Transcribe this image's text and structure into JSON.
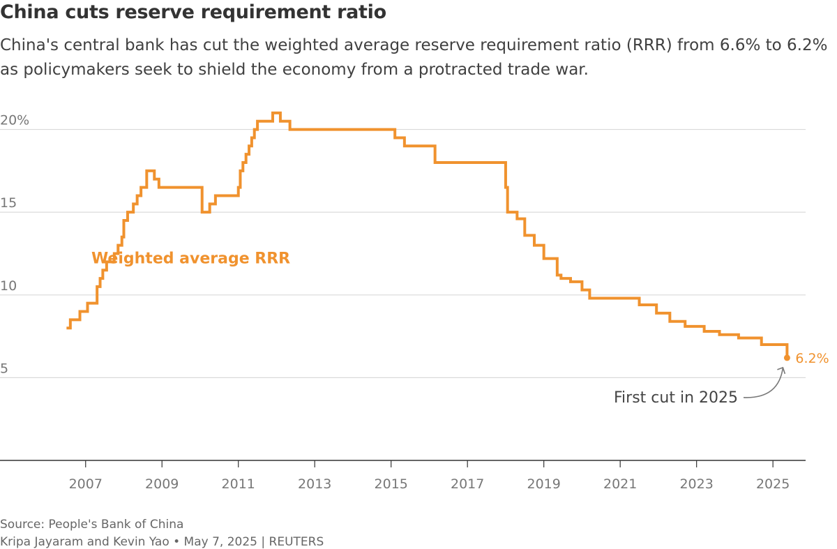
{
  "header": {
    "title": "China cuts reserve requirement ratio",
    "subtitle": "China's central bank has cut the weighted average reserve requirement ratio (RRR) from 6.6% to 6.2% as policymakers seek to shield the economy from a protracted trade war."
  },
  "footer": {
    "source": "Source: People's Bank of China",
    "byline": "Kripa Jayaram and Kevin Yao • May 7, 2025 | REUTERS"
  },
  "chart_data": {
    "type": "line",
    "step": true,
    "grid": true,
    "ylim": [
      0,
      21.5
    ],
    "xlim": [
      2006.0,
      2025.6
    ],
    "yticks": [
      5,
      10,
      15,
      20
    ],
    "ytick_labels": [
      "5",
      "10",
      "15",
      "20%"
    ],
    "xticks": [
      2007,
      2009,
      2011,
      2013,
      2015,
      2017,
      2019,
      2021,
      2023,
      2025
    ],
    "xtick_labels": [
      "2007",
      "2009",
      "2011",
      "2013",
      "2015",
      "2017",
      "2019",
      "2021",
      "2023",
      "2025"
    ],
    "colors": {
      "series": "#f0922e",
      "grid": "#d9d9d9",
      "axis": "#333333",
      "tick_text": "#777777",
      "annotation": "#444444"
    },
    "series": [
      {
        "name": "Weighted average RRR",
        "x": [
          2006.5,
          2006.6,
          2006.85,
          2007.05,
          2007.3,
          2007.38,
          2007.45,
          2007.55,
          2007.75,
          2007.85,
          2007.95,
          2008.0,
          2008.1,
          2008.25,
          2008.35,
          2008.45,
          2008.6,
          2008.8,
          2008.92,
          2010.05,
          2010.25,
          2010.4,
          2011.0,
          2011.05,
          2011.12,
          2011.2,
          2011.28,
          2011.35,
          2011.42,
          2011.5,
          2011.9,
          2012.1,
          2012.35,
          2015.1,
          2015.35,
          2016.15,
          2018.0,
          2018.05,
          2018.3,
          2018.5,
          2018.75,
          2019.0,
          2019.35,
          2019.45,
          2019.7,
          2020.0,
          2020.2,
          2021.5,
          2021.95,
          2022.3,
          2022.7,
          2023.2,
          2023.6,
          2024.1,
          2024.7,
          2025.37
        ],
        "values": [
          8.0,
          8.5,
          9.0,
          9.5,
          10.5,
          11.0,
          11.5,
          12.0,
          12.5,
          13.0,
          13.5,
          14.5,
          15.0,
          15.5,
          16.0,
          16.5,
          17.5,
          17.0,
          16.5,
          15.0,
          15.5,
          16.0,
          16.5,
          17.5,
          18.0,
          18.5,
          19.0,
          19.5,
          20.0,
          20.5,
          21.0,
          20.5,
          20.0,
          19.5,
          19.0,
          18.0,
          16.5,
          15.0,
          14.6,
          13.6,
          13.0,
          12.2,
          11.2,
          11.0,
          10.8,
          10.3,
          9.8,
          9.4,
          8.9,
          8.4,
          8.1,
          7.8,
          7.6,
          7.4,
          7.0,
          6.6
        ],
        "last": {
          "x": 2025.37,
          "value": 6.2
        }
      }
    ],
    "series_label": "Weighted average RRR",
    "end_label": "6.2%",
    "annotation": "First cut in 2025"
  }
}
